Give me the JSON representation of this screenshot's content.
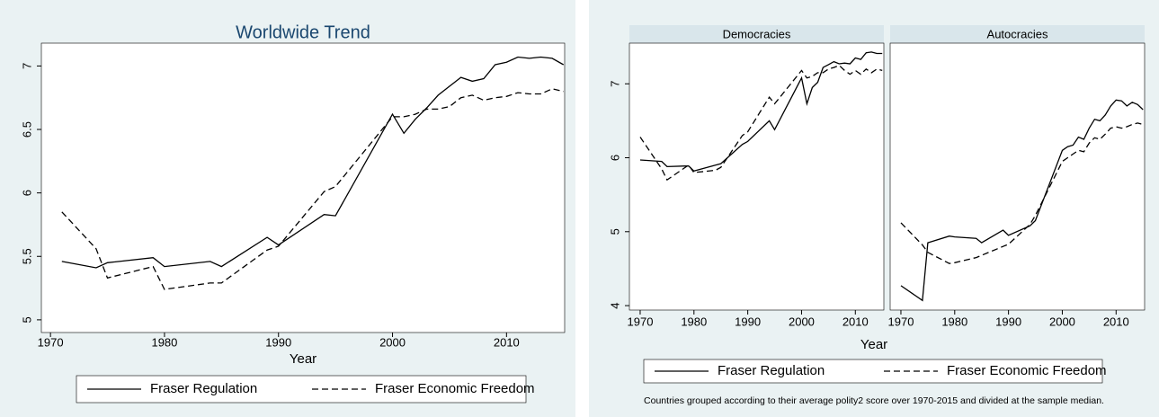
{
  "chart_data": [
    {
      "type": "line",
      "title": "Worldwide Trend",
      "xlabel": "Year",
      "x": [
        1971,
        1974,
        1975,
        1979,
        1980,
        1984,
        1985,
        1989,
        1990,
        1994,
        1995,
        2000,
        2001,
        2002,
        2003,
        2004,
        2005,
        2006,
        2007,
        2008,
        2009,
        2010,
        2011,
        2012,
        2013,
        2014,
        2015
      ],
      "series": [
        {
          "name": "Fraser Regulation",
          "color": "#000000",
          "dash": false,
          "values": [
            5.46,
            5.41,
            5.45,
            5.49,
            5.42,
            5.46,
            5.42,
            5.65,
            5.59,
            5.83,
            5.82,
            6.62,
            6.47,
            6.58,
            6.67,
            6.77,
            6.84,
            6.91,
            6.88,
            6.9,
            7.01,
            7.03,
            7.07,
            7.06,
            7.07,
            7.06,
            7.01
          ]
        },
        {
          "name": "Fraser Economic Freedom",
          "color": "#000000",
          "dash": true,
          "values": [
            5.85,
            5.56,
            5.33,
            5.42,
            5.24,
            5.29,
            5.29,
            5.55,
            5.58,
            6.01,
            6.05,
            6.6,
            6.6,
            6.62,
            6.66,
            6.66,
            6.68,
            6.75,
            6.77,
            6.73,
            6.75,
            6.76,
            6.79,
            6.78,
            6.78,
            6.82,
            6.8
          ]
        }
      ],
      "xlim": [
        1969.2,
        2015.1
      ],
      "xticks": [
        1970,
        1980,
        1990,
        2000,
        2010
      ],
      "ylim": [
        4.9,
        7.18
      ],
      "yticks": [
        5,
        5.5,
        6,
        6.5,
        7
      ],
      "grid": false
    },
    {
      "type": "line",
      "xlabel": "Year",
      "note": "Countries grouped according to their average polity2 score over 1970-2015 and divided at the sample median.",
      "x": [
        1970,
        1974,
        1975,
        1979,
        1980,
        1984,
        1985,
        1989,
        1990,
        1994,
        1995,
        2000,
        2001,
        2002,
        2003,
        2004,
        2005,
        2006,
        2007,
        2008,
        2009,
        2010,
        2011,
        2012,
        2013,
        2014,
        2015
      ],
      "series": [
        {
          "name": "Fraser Regulation",
          "color": "#000000",
          "dash": false
        },
        {
          "name": "Fraser Economic Freedom",
          "color": "#000000",
          "dash": true
        }
      ],
      "xlim": [
        1968,
        2015.3
      ],
      "xticks": [
        1970,
        1980,
        1990,
        2000,
        2010
      ],
      "ylim": [
        3.94,
        7.55
      ],
      "yticks": [
        4,
        5,
        6,
        7
      ],
      "grid": false,
      "panels": [
        {
          "title": "Democracies",
          "values": [
            [
              5.97,
              5.95,
              5.88,
              5.89,
              5.82,
              5.9,
              5.92,
              6.18,
              6.22,
              6.5,
              6.38,
              7.08,
              6.73,
              6.95,
              7.02,
              7.22,
              7.26,
              7.3,
              7.27,
              7.28,
              7.27,
              7.35,
              7.33,
              7.42,
              7.43,
              7.41,
              7.41
            ],
            [
              6.28,
              5.85,
              5.7,
              5.9,
              5.8,
              5.83,
              5.87,
              6.3,
              6.35,
              6.82,
              6.73,
              7.18,
              7.08,
              7.1,
              7.15,
              7.15,
              7.2,
              7.22,
              7.25,
              7.18,
              7.13,
              7.18,
              7.13,
              7.2,
              7.15,
              7.2,
              7.18
            ]
          ]
        },
        {
          "title": "Autocracies",
          "values": [
            [
              4.27,
              4.07,
              4.85,
              4.94,
              4.93,
              4.91,
              4.85,
              5.02,
              4.95,
              5.08,
              5.15,
              6.1,
              6.15,
              6.17,
              6.28,
              6.25,
              6.4,
              6.52,
              6.5,
              6.58,
              6.7,
              6.78,
              6.77,
              6.7,
              6.75,
              6.72,
              6.65
            ],
            [
              5.12,
              4.82,
              4.72,
              4.57,
              4.58,
              4.65,
              4.68,
              4.8,
              4.83,
              5.1,
              5.22,
              5.95,
              6.0,
              6.05,
              6.1,
              6.08,
              6.2,
              6.27,
              6.25,
              6.32,
              6.4,
              6.42,
              6.4,
              6.42,
              6.45,
              6.47,
              6.45
            ]
          ]
        }
      ]
    }
  ]
}
